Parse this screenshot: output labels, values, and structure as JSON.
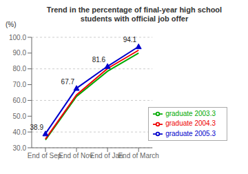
{
  "chart_data": {
    "type": "line",
    "title": "Trend in the percentage of final-year high school\nstudents with official job offer",
    "ylabel": "(%)",
    "categories": [
      "End of Sep.",
      "End of Nov.",
      "End of Jan.",
      "End of March"
    ],
    "series": [
      {
        "name": "graduate 2003.3",
        "color": "#00aa00",
        "values": [
          35.0,
          62.5,
          78.5,
          90.0
        ]
      },
      {
        "name": "graduate 2004.3",
        "color": "#ee0000",
        "values": [
          35.5,
          63.5,
          80.2,
          91.8
        ]
      },
      {
        "name": "graduate 2005.3",
        "color": "#0000cc",
        "marker": "triangle",
        "values": [
          38.9,
          67.7,
          81.6,
          94.1
        ]
      }
    ],
    "annotations": [
      {
        "text": "38.9",
        "x": "End of Sep.",
        "y": 38.9
      },
      {
        "text": "67.7",
        "x": "End of Nov.",
        "y": 67.7
      },
      {
        "text": "81.6",
        "x": "End of Jan.",
        "y": 81.6
      },
      {
        "text": "94.1",
        "x": "End of March",
        "y": 94.1
      }
    ],
    "ylim": [
      30.0,
      100.0
    ],
    "yticks": [
      {
        "value": 30,
        "label": "30.0"
      },
      {
        "value": 40,
        "label": "40.0"
      },
      {
        "value": 50,
        "label": "50.0"
      },
      {
        "value": 60,
        "label": "60.0"
      },
      {
        "value": 70,
        "label": "70.0"
      },
      {
        "value": 80,
        "label": "80.0"
      },
      {
        "value": 90,
        "label": "90.0"
      },
      {
        "value": 100,
        "label": "100.0"
      }
    ],
    "grid": true,
    "legend": "lower right"
  }
}
